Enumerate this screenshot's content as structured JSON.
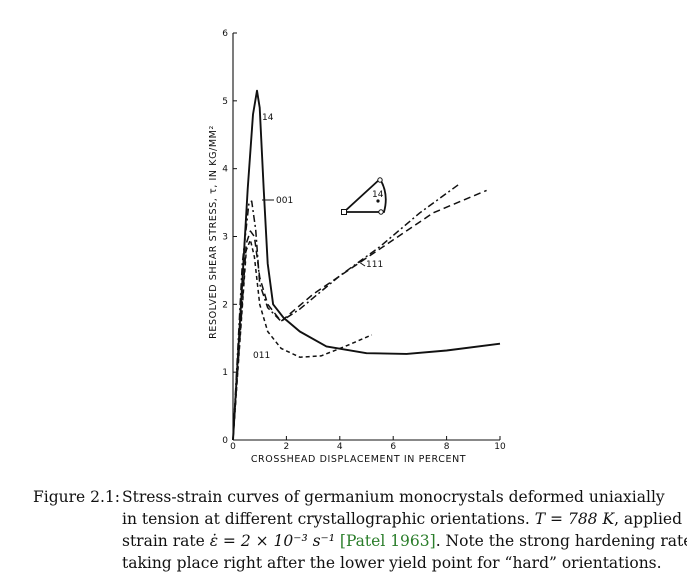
{
  "chart_data": {
    "type": "line",
    "title": "",
    "xlabel": "CROSSHEAD DISPLACEMENT IN PERCENT",
    "ylabel": "RESOLVED SHEAR STRESS, τ, IN KG/MM²",
    "xlim": [
      0,
      10
    ],
    "ylim": [
      0,
      6
    ],
    "x_ticks": [
      "0",
      "2",
      "4",
      "6",
      "8",
      "10"
    ],
    "y_ticks": [
      "0",
      "1",
      "2",
      "3",
      "4",
      "5",
      "6"
    ],
    "grid": false,
    "series": [
      {
        "name": "14",
        "style": "solid",
        "points": [
          [
            0,
            0
          ],
          [
            0.3,
            2.0
          ],
          [
            0.55,
            3.7
          ],
          [
            0.75,
            4.8
          ],
          [
            0.9,
            5.15
          ],
          [
            1.0,
            4.9
          ],
          [
            1.15,
            3.7
          ],
          [
            1.3,
            2.6
          ],
          [
            1.5,
            2.0
          ],
          [
            1.9,
            1.8
          ],
          [
            2.5,
            1.6
          ],
          [
            3.5,
            1.38
          ],
          [
            5.0,
            1.28
          ],
          [
            6.5,
            1.27
          ],
          [
            8.0,
            1.32
          ],
          [
            10.0,
            1.42
          ]
        ]
      },
      {
        "name": "001",
        "style": "dash-dot",
        "points": [
          [
            0,
            0
          ],
          [
            0.35,
            2.6
          ],
          [
            0.6,
            3.5
          ],
          [
            0.7,
            3.52
          ],
          [
            0.85,
            3.1
          ],
          [
            1.0,
            2.3
          ],
          [
            1.3,
            1.95
          ],
          [
            1.8,
            1.75
          ],
          [
            2.5,
            1.93
          ],
          [
            4.0,
            2.42
          ],
          [
            5.5,
            2.85
          ],
          [
            7.0,
            3.35
          ],
          [
            8.5,
            3.78
          ]
        ]
      },
      {
        "name": "111",
        "style": "dashed",
        "points": [
          [
            0,
            0
          ],
          [
            0.5,
            2.9
          ],
          [
            0.65,
            3.08
          ],
          [
            0.8,
            3.0
          ],
          [
            1.0,
            2.4
          ],
          [
            1.3,
            2.0
          ],
          [
            1.8,
            1.75
          ],
          [
            3.0,
            2.15
          ],
          [
            4.5,
            2.55
          ],
          [
            6.0,
            2.95
          ],
          [
            7.5,
            3.35
          ],
          [
            9.5,
            3.68
          ]
        ]
      },
      {
        "name": "011",
        "style": "dotted-dashed",
        "points": [
          [
            0,
            0
          ],
          [
            0.5,
            2.8
          ],
          [
            0.65,
            2.95
          ],
          [
            0.8,
            2.7
          ],
          [
            1.0,
            2.0
          ],
          [
            1.3,
            1.6
          ],
          [
            1.8,
            1.35
          ],
          [
            2.5,
            1.22
          ],
          [
            3.3,
            1.24
          ],
          [
            4.2,
            1.38
          ],
          [
            5.2,
            1.55
          ]
        ]
      }
    ],
    "annotations": [
      "14",
      "001",
      "111",
      "011"
    ],
    "inset": {
      "type": "stereographic-triangle",
      "label": "14"
    }
  },
  "caption": {
    "label": "Figure 2.1:",
    "line1": "Stress-strain curves of germanium monocrystals deformed uniaxially",
    "line2a": "in tension at different crystallographic orientations. ",
    "line2_math": "T = 788 K",
    "line2b": ", applied",
    "line3a": "strain rate ",
    "line3_math": "ε̇ = 2 × 10⁻³ s⁻¹",
    "line3_cite": "[Patel 1963]",
    "line3b": ". Note the strong hardening rate",
    "line4": "taking place right after the lower yield point for “hard” orientations."
  },
  "colors": {
    "ink": "#111111",
    "citation": "#2a7d2a",
    "background": "#ffffff"
  }
}
